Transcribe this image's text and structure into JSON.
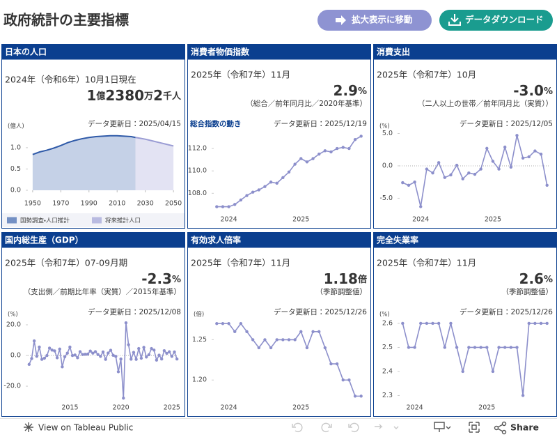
{
  "header": {
    "title": "政府統計の主要指標",
    "buttons": [
      "拡大表示に移動",
      "データダウンロード"
    ]
  },
  "footer": {
    "link": "View on Tableau Public",
    "share": "Share"
  },
  "chart_data": [
    {
      "type": "area",
      "title": "日本の人口",
      "period": "2024年（令和6年）10月1日現在",
      "headline": [
        "1",
        "億",
        "2380",
        "万",
        "2",
        "千人"
      ],
      "updated": "データ更新日：2025/04/15",
      "y_label": "(億人)",
      "x": [
        1950,
        1955,
        1960,
        1965,
        1970,
        1975,
        1980,
        1985,
        1990,
        1995,
        2000,
        2005,
        2010,
        2015,
        2020,
        2023,
        2025,
        2030,
        2035,
        2040,
        2045,
        2050
      ],
      "xlim": [
        1946.6,
        2053.4
      ],
      "xticks": [
        1950,
        1970,
        1990,
        2010,
        2030,
        2050
      ],
      "ylim": [
        0,
        1.44
      ],
      "yticks": [
        {
          "value": 0,
          "label": "0.0"
        },
        {
          "value": 0.5,
          "label": "0.5"
        },
        {
          "value": 1,
          "label": "1.0"
        }
      ],
      "legend": "bottom",
      "series": [
        {
          "name": "国勢調査・人口推計",
          "color": "#2f5aa8",
          "values": [
            0.84,
            0.9,
            0.94,
            0.99,
            1.05,
            1.12,
            1.17,
            1.21,
            1.24,
            1.26,
            1.27,
            1.28,
            1.28,
            1.27,
            1.26,
            1.24,
            null,
            null,
            null,
            null,
            null,
            null
          ]
        },
        {
          "name": "将来推計人口",
          "color": "#9a9cd4",
          "values": [
            null,
            null,
            null,
            null,
            null,
            null,
            null,
            null,
            null,
            null,
            null,
            null,
            null,
            null,
            null,
            1.24,
            1.23,
            1.2,
            1.16,
            1.12,
            1.08,
            1.04
          ]
        }
      ]
    },
    {
      "type": "line",
      "title": "消費者物価指数",
      "period": "2025年（令和7年）11月",
      "headline": [
        "2.9",
        "%"
      ],
      "note": "（総合／前年同月比／2020年基準）",
      "subtitle": "総合指数の動き",
      "updated": "データ更新日：2025/12/19",
      "categories": [
        null,
        null,
        "2024",
        null,
        null,
        null,
        null,
        null,
        null,
        null,
        null,
        null,
        null,
        null,
        "2025",
        null,
        null,
        null,
        null,
        null,
        null,
        null,
        null,
        null,
        null
      ],
      "values": [
        106.8,
        106.8,
        106.8,
        107.0,
        107.4,
        107.8,
        108.1,
        108.3,
        108.6,
        109.0,
        108.9,
        109.4,
        109.9,
        110.6,
        111.1,
        110.8,
        111.1,
        111.5,
        111.8,
        111.7,
        112.0,
        112.1,
        112.0,
        112.8,
        113.1
      ],
      "color": "#8c8fcb",
      "ylim": [
        106.4,
        113.75
      ],
      "yticks": [
        {
          "value": 108,
          "label": "108.0"
        },
        {
          "value": 110,
          "label": "110.0"
        },
        {
          "value": 112,
          "label": "112.0"
        }
      ]
    },
    {
      "type": "line",
      "title": "消費支出",
      "period": "2025年（令和7年）10月",
      "headline": [
        "-3.0",
        "%"
      ],
      "note": "（二人以上の世帯／前年同月比（実質））",
      "updated": "データ更新日：2025/12/05",
      "y_label": "(%)",
      "categories": [
        null,
        null,
        null,
        "2024",
        null,
        null,
        null,
        null,
        null,
        null,
        null,
        null,
        null,
        null,
        null,
        "2025",
        null,
        null,
        null,
        null,
        null,
        null,
        null,
        null,
        null
      ],
      "values": [
        -2.6,
        -3.0,
        -2.5,
        -6.3,
        -0.5,
        -1.1,
        0.5,
        -1.8,
        -1.4,
        0.1,
        -2.0,
        -1.1,
        -1.3,
        -0.5,
        2.7,
        0.7,
        -0.5,
        2.9,
        -0.2,
        4.7,
        1.2,
        1.4,
        2.3,
        1.8,
        -3.0
      ],
      "color": "#8c8fcb",
      "ylim": [
        -7,
        5.7
      ],
      "zero_line": true,
      "yticks": [
        {
          "value": 5,
          "label": "5.0"
        },
        {
          "value": 0,
          "label": "0.0"
        },
        {
          "value": -5,
          "label": "-5.0"
        }
      ]
    },
    {
      "type": "line",
      "title": "国内総生産（GDP）",
      "period": "2025年（令和7年）07-09月期",
      "headline": [
        "-2.3",
        "%"
      ],
      "note": "（支出側／前期比年率（実質）／2015年基準）",
      "updated": "データ更新日：2025/12/08",
      "y_label": "(%)",
      "categories": [
        null,
        null,
        null,
        null,
        null,
        null,
        null,
        null,
        null,
        null,
        null,
        null,
        null,
        null,
        null,
        null,
        "2015",
        null,
        null,
        null,
        null,
        null,
        null,
        null,
        null,
        null,
        null,
        null,
        null,
        null,
        null,
        null,
        null,
        null,
        null,
        null,
        "2020",
        null,
        null,
        null,
        null,
        null,
        null,
        null,
        null,
        null,
        null,
        null,
        null,
        null,
        null,
        null,
        null,
        null,
        null,
        null,
        "2025",
        null,
        null
      ],
      "values": [
        -5.8,
        -2.0,
        9.5,
        -0.5,
        5.5,
        -2.5,
        -1.8,
        0.0,
        4.8,
        3.5,
        3.0,
        -1.5,
        4.2,
        -7.4,
        -0.8,
        1.5,
        5.5,
        0.0,
        0.3,
        -1.5,
        2.5,
        0.6,
        0.8,
        0.9,
        2.9,
        1.5,
        2.5,
        0.6,
        -0.6,
        2.3,
        -2.5,
        1.6,
        3.4,
        0.1,
        -0.6,
        -10.6,
        -2.3,
        -27.8,
        21.3,
        7.0,
        -2.4,
        2.0,
        -2.5,
        4.5,
        -1.8,
        5.3,
        -1.0,
        0.5,
        4.5,
        3.5,
        -3.0,
        0.2,
        -2.3,
        3.1,
        1.4,
        2.4,
        -0.6,
        2.3,
        -2.3
      ],
      "color": "#8c8fcb",
      "ylim": [
        -28.6,
        25
      ],
      "zero_line": true,
      "yticks": [
        {
          "value": 20,
          "label": "20.0"
        },
        {
          "value": 0,
          "label": "0.0"
        },
        {
          "value": -20,
          "label": "-20.0"
        }
      ]
    },
    {
      "type": "line",
      "title": "有効求人倍率",
      "period": "2025年（令和7年）11月",
      "headline": [
        "1.18",
        "倍"
      ],
      "note": "（季節調整値）",
      "updated": "データ更新日：2025/12/26",
      "y_label": "(倍)",
      "categories": [
        null,
        null,
        "2024",
        null,
        null,
        null,
        null,
        null,
        null,
        null,
        null,
        null,
        null,
        null,
        "2025",
        null,
        null,
        null,
        null,
        null,
        null,
        null,
        null,
        null,
        null
      ],
      "values": [
        1.27,
        1.27,
        1.27,
        1.26,
        1.27,
        1.26,
        1.25,
        1.24,
        1.25,
        1.24,
        1.25,
        1.25,
        1.25,
        1.25,
        1.26,
        1.24,
        1.26,
        1.26,
        1.24,
        1.22,
        1.22,
        1.2,
        1.2,
        1.18,
        1.18
      ],
      "color": "#8c8fcb",
      "ylim": [
        1.176,
        1.278
      ],
      "yticks": [
        1.25,
        {
          "value": 1.2,
          "label": "1.20"
        }
      ]
    },
    {
      "type": "line",
      "title": "完全失業率",
      "period": "2025年（令和7年）11月",
      "headline": [
        "2.6",
        "%"
      ],
      "note": "（季節調整値）",
      "updated": "データ更新日：2025/12/26",
      "y_label": "(%)",
      "categories": [
        null,
        null,
        "2024",
        null,
        null,
        null,
        null,
        null,
        null,
        null,
        null,
        null,
        null,
        null,
        "2025",
        null,
        null,
        null,
        null,
        null,
        null,
        null,
        null,
        null,
        null
      ],
      "values": [
        2.6,
        2.5,
        2.5,
        2.6,
        2.6,
        2.6,
        2.6,
        2.5,
        2.6,
        2.5,
        2.4,
        2.5,
        2.5,
        2.5,
        2.5,
        2.4,
        2.5,
        2.5,
        2.5,
        2.5,
        2.3,
        2.6,
        2.6,
        2.6,
        2.6
      ],
      "color": "#8c8fcb",
      "ylim": [
        2.284,
        2.626
      ],
      "yticks": [
        2.6,
        2.5,
        2.4,
        2.3
      ]
    }
  ]
}
